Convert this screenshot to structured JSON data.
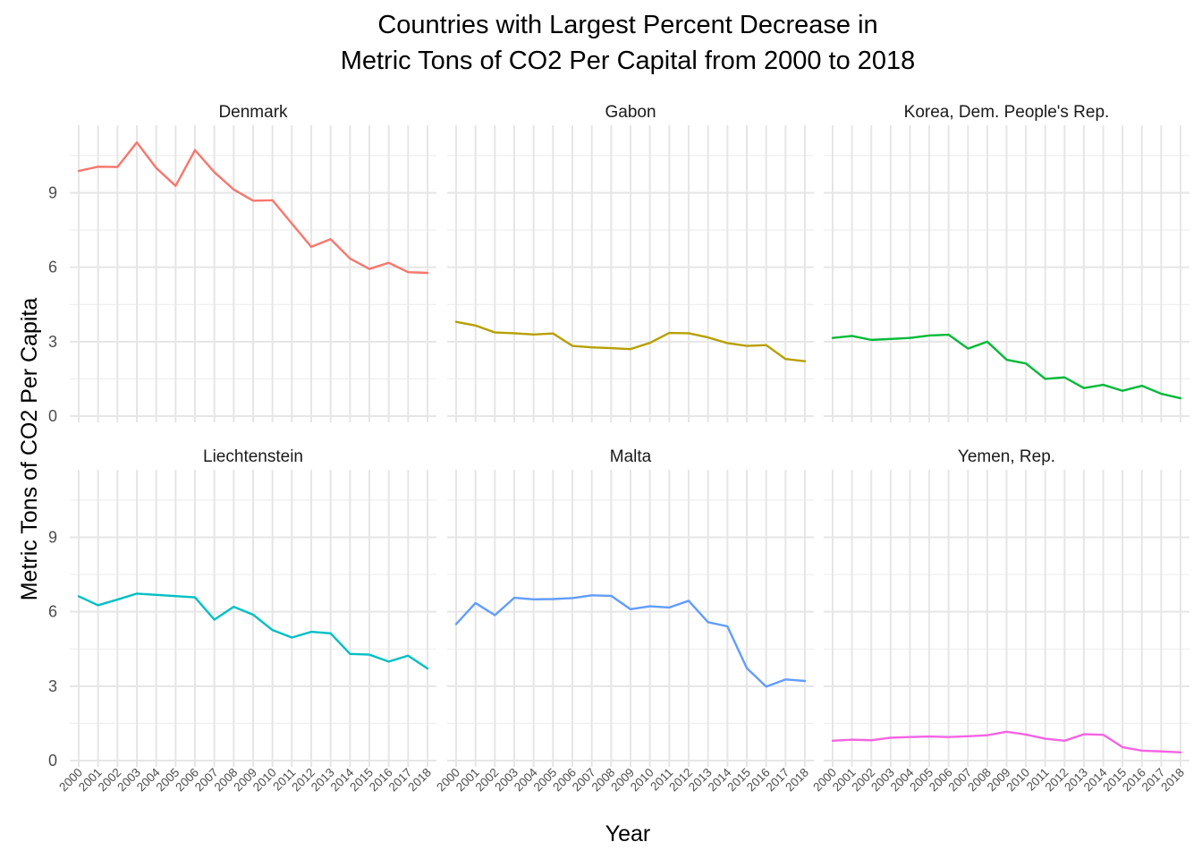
{
  "chart_data": {
    "type": "line",
    "title_lines": [
      "Countries with Largest Percent Decrease in",
      "Metric Tons of CO2 Per Capital from 2000 to 2018"
    ],
    "xlabel": "Year",
    "ylabel": "Metric Tons of CO2 Per Capita",
    "x": [
      "2000",
      "2001",
      "2002",
      "2003",
      "2004",
      "2005",
      "2006",
      "2007",
      "2008",
      "2009",
      "2010",
      "2011",
      "2012",
      "2013",
      "2014",
      "2015",
      "2016",
      "2017",
      "2018"
    ],
    "ylim": [
      0,
      11.5
    ],
    "yticks": [
      0,
      3,
      6,
      9
    ],
    "grid": true,
    "legend": "none",
    "series": [
      {
        "name": "Denmark",
        "color": "#F8766D",
        "values": [
          9.88,
          10.05,
          10.04,
          11.03,
          10.0,
          9.28,
          10.72,
          9.83,
          9.13,
          8.68,
          8.7,
          7.76,
          6.82,
          7.13,
          6.35,
          5.93,
          6.18,
          5.8,
          5.77
        ]
      },
      {
        "name": "Gabon",
        "color": "#B79F00",
        "values": [
          3.8,
          3.65,
          3.37,
          3.34,
          3.29,
          3.33,
          2.83,
          2.77,
          2.74,
          2.7,
          2.95,
          3.35,
          3.34,
          3.17,
          2.94,
          2.83,
          2.86,
          2.3,
          2.21
        ]
      },
      {
        "name": "Korea, Dem. People's Rep.",
        "color": "#00BA38",
        "values": [
          3.15,
          3.23,
          3.07,
          3.11,
          3.15,
          3.25,
          3.28,
          2.72,
          3.0,
          2.27,
          2.12,
          1.5,
          1.56,
          1.13,
          1.26,
          1.02,
          1.22,
          0.9,
          0.72
        ]
      },
      {
        "name": "Liechtenstein",
        "color": "#00BFC4",
        "values": [
          6.62,
          6.26,
          6.49,
          6.73,
          6.68,
          6.63,
          6.58,
          5.68,
          6.2,
          5.88,
          5.26,
          4.96,
          5.19,
          5.13,
          4.3,
          4.27,
          3.99,
          4.23,
          3.71
        ]
      },
      {
        "name": "Malta",
        "color": "#619CFF",
        "values": [
          5.5,
          6.35,
          5.86,
          6.56,
          6.5,
          6.51,
          6.55,
          6.66,
          6.64,
          6.1,
          6.22,
          6.17,
          6.44,
          5.58,
          5.41,
          3.73,
          2.98,
          3.27,
          3.21
        ]
      },
      {
        "name": "Yemen, Rep.",
        "color": "#F564E3",
        "values": [
          0.8,
          0.84,
          0.82,
          0.92,
          0.95,
          0.97,
          0.95,
          0.98,
          1.02,
          1.16,
          1.05,
          0.88,
          0.8,
          1.06,
          1.04,
          0.54,
          0.4,
          0.37,
          0.33
        ]
      }
    ]
  }
}
